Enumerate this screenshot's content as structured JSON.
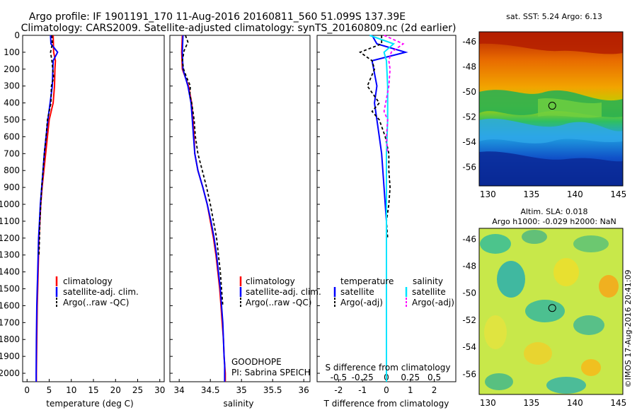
{
  "header": {
    "line1": "Argo profile: IF 1901191_170 11-Aug-2016 20160811_560 51.099S 137.39E",
    "line2": "Climatology: CARS2009. Satellite-adjusted climatology: synTS_20160809.nc (2d earlier)"
  },
  "colors": {
    "climatology": "#ff0000",
    "satellite": "#0000ff",
    "argo": "#000000",
    "salinity_satellite": "#00e5ff",
    "salinity_argo": "#ff00ff"
  },
  "legends": {
    "temp": {
      "items": [
        "climatology",
        "satellite-adj. clim.",
        "Argo(..raw -QC)"
      ]
    },
    "sal": {
      "items": [
        "climatology",
        "satellite-adj. clim.",
        "Argo(..raw -QC)"
      ]
    },
    "diff": {
      "temp_title": "temperature",
      "sal_title": "salinity",
      "temp_items": [
        "satellite",
        "Argo(-adj)"
      ],
      "sal_items": [
        "satellite",
        "Argo(-adj)"
      ]
    }
  },
  "annotations": {
    "goodhope": "GOODHOPE",
    "pi": "PI: Sabrina SPEICH",
    "imos": "©IMOS 17-Aug-2016 20:41:09",
    "s_diff_label": "S difference from climatology"
  },
  "maps": {
    "sst_title": "sat. SST: 5.24 Argo: 6.13",
    "sla_title1": "Altim. SLA: 0.018",
    "sla_title2": "Argo h1000: -0.029 h2000: NaN",
    "xticks": [
      "130",
      "135",
      "140",
      "145"
    ],
    "yticks": [
      "-46",
      "-48",
      "-50",
      "-52",
      "-54",
      "-56"
    ],
    "marker": {
      "lon": 137.39,
      "lat": -51.099
    },
    "lon_range": [
      129,
      145.5
    ],
    "lat_range": [
      -45.2,
      -57.5
    ]
  },
  "chart_data": [
    {
      "type": "line",
      "xlabel": "temperature (deg C)",
      "ylabel": "",
      "xlim": [
        -1,
        31
      ],
      "ylim": [
        2050,
        0
      ],
      "xticks": [
        0,
        5,
        10,
        15,
        20,
        25,
        30
      ],
      "yticks": [
        0,
        100,
        200,
        300,
        400,
        500,
        600,
        700,
        800,
        900,
        1000,
        1100,
        1200,
        1300,
        1400,
        1500,
        1600,
        1700,
        1800,
        1900,
        2000
      ],
      "series": [
        {
          "name": "climatology",
          "x": [
            5.9,
            6.0,
            6.4,
            6.3,
            6.2,
            5.9,
            5.0,
            4.6,
            4.2,
            3.8,
            3.4,
            3.1,
            2.9,
            2.7,
            2.6,
            2.5,
            2.4,
            2.3,
            2.2,
            2.1,
            2.1
          ],
          "y": [
            0,
            100,
            150,
            200,
            300,
            400,
            500,
            600,
            700,
            800,
            900,
            1000,
            1100,
            1200,
            1300,
            1400,
            1500,
            1600,
            1800,
            2000,
            2050
          ]
        },
        {
          "name": "satellite-adj. clim.",
          "x": [
            5.3,
            5.4,
            6.9,
            5.9,
            5.7,
            5.2,
            4.7,
            4.3,
            3.9,
            3.6,
            3.3,
            3.0,
            2.8,
            2.6,
            2.5,
            2.4,
            2.3,
            2.2,
            2.1,
            2.05,
            2.05
          ],
          "y": [
            0,
            50,
            100,
            150,
            300,
            400,
            500,
            600,
            700,
            800,
            900,
            1000,
            1100,
            1200,
            1300,
            1400,
            1500,
            1600,
            1800,
            2000,
            2050
          ]
        },
        {
          "name": "Argo(..raw -QC)",
          "x": [
            5.6,
            5.7,
            5.3,
            5.6,
            5.8,
            6.0,
            5.5,
            5.4,
            5.0,
            4.6,
            4.3,
            3.9,
            3.6,
            3.3,
            3.1,
            2.9,
            2.8,
            2.7
          ],
          "y": [
            0,
            50,
            100,
            150,
            200,
            250,
            300,
            400,
            450,
            500,
            600,
            700,
            800,
            900,
            1000,
            1100,
            1200,
            1300
          ]
        }
      ]
    },
    {
      "type": "line",
      "xlabel": "salinity",
      "ylabel": "",
      "xlim": [
        33.85,
        36.1
      ],
      "ylim": [
        2050,
        0
      ],
      "xticks": [
        34,
        34.5,
        35,
        35.5,
        36
      ],
      "xticklabels": [
        "34",
        "34.5",
        "35",
        "35.5",
        "36"
      ],
      "series": [
        {
          "name": "climatology",
          "x": [
            34.05,
            34.04,
            34.05,
            34.15,
            34.2,
            34.22,
            34.24,
            34.25,
            34.3,
            34.38,
            34.45,
            34.5,
            34.55,
            34.59,
            34.62,
            34.65,
            34.67,
            34.69,
            34.71,
            34.72,
            34.73,
            34.74,
            34.74
          ],
          "y": [
            0,
            100,
            200,
            300,
            400,
            500,
            600,
            700,
            800,
            900,
            1000,
            1100,
            1200,
            1300,
            1400,
            1500,
            1600,
            1700,
            1800,
            1900,
            1950,
            2000,
            2050
          ]
        },
        {
          "name": "satellite-adj. clim.",
          "x": [
            34.06,
            34.05,
            34.06,
            34.14,
            34.19,
            34.21,
            34.23,
            34.25,
            34.3,
            34.38,
            34.45,
            34.51,
            34.56,
            34.6,
            34.63,
            34.66,
            34.68,
            34.7,
            34.71,
            34.72,
            34.73,
            34.73,
            34.73
          ],
          "y": [
            0,
            100,
            200,
            300,
            400,
            500,
            600,
            700,
            800,
            900,
            1000,
            1100,
            1200,
            1300,
            1400,
            1500,
            1600,
            1700,
            1800,
            1900,
            1950,
            2000,
            2050
          ]
        },
        {
          "name": "Argo(..raw -QC)",
          "x": [
            34.1,
            34.14,
            34.08,
            34.05,
            34.07,
            34.12,
            34.18,
            34.17,
            34.2,
            34.22,
            34.24,
            34.26,
            34.3,
            34.37,
            34.44,
            34.5,
            34.55,
            34.6,
            34.63,
            34.66,
            34.68,
            34.7
          ],
          "y": [
            0,
            40,
            90,
            150,
            200,
            250,
            300,
            350,
            400,
            450,
            500,
            600,
            700,
            800,
            900,
            1000,
            1100,
            1200,
            1300,
            1400,
            1500,
            1600
          ]
        }
      ]
    },
    {
      "type": "line",
      "xlabel": "T difference from climatology",
      "ylabel": "",
      "xlim": [
        -2.9,
        2.9
      ],
      "ylim": [
        2050,
        0
      ],
      "xticks": [
        -2,
        -1,
        0,
        1,
        2
      ],
      "xticklabels": [
        "-2",
        "-1",
        "0",
        "1",
        "2"
      ],
      "secondary_xlabel": "S difference from climatology",
      "secondary_xticks": [
        -0.5,
        -0.25,
        0,
        0.25,
        0.5
      ],
      "secondary_xticklabels": [
        "-0.5",
        "-0.25",
        "0",
        "0.25",
        "0.5"
      ],
      "series": [
        {
          "name": "temperature satellite",
          "x": [
            -0.6,
            -0.4,
            0.8,
            -0.6,
            -0.4,
            -0.5,
            -0.4,
            -0.3,
            -0.2,
            -0.15,
            -0.1,
            -0.05,
            0,
            0,
            0,
            0,
            0
          ],
          "y": [
            0,
            50,
            100,
            150,
            300,
            400,
            500,
            600,
            700,
            800,
            900,
            1000,
            1100,
            1200,
            1400,
            1800,
            2050
          ]
        },
        {
          "name": "temperature Argo(-adj)",
          "x": [
            -0.2,
            -0.2,
            -1.1,
            -0.6,
            -0.5,
            -0.8,
            -0.3,
            -0.6,
            -0.3,
            -0.05,
            0.1,
            0.1,
            0.15,
            0.1,
            0.0,
            0.05
          ],
          "y": [
            0,
            50,
            100,
            150,
            200,
            300,
            400,
            450,
            500,
            600,
            700,
            800,
            900,
            1000,
            1100,
            1200
          ]
        },
        {
          "name": "salinity satellite",
          "x": [
            -0.7,
            0.3,
            -0.1,
            0.0,
            0.05,
            0.05,
            0.0,
            0.0,
            0.0,
            0.0
          ],
          "y": [
            0,
            50,
            100,
            150,
            300,
            500,
            700,
            1000,
            1500,
            2050
          ]
        },
        {
          "name": "salinity Argo(-adj)",
          "x": [
            -0.1,
            0.7,
            0.2,
            0.1,
            0.15,
            0.1,
            -0.1,
            0.05,
            0.0,
            0.05
          ],
          "y": [
            0,
            50,
            100,
            150,
            200,
            300,
            450,
            500,
            600,
            700
          ]
        }
      ]
    }
  ]
}
